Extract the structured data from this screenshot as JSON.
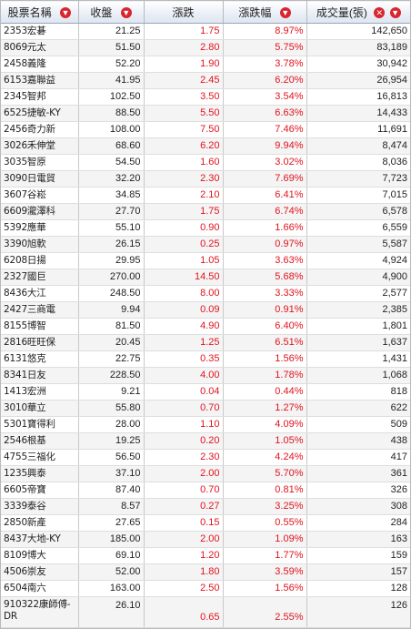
{
  "headers": {
    "name": "股票名稱",
    "price": "收盤",
    "change": "漲跌",
    "change_pct": "漲跌幅",
    "volume": "成交量(張)"
  },
  "icons": {
    "sort": "sort-down-icon",
    "close": "close-icon"
  },
  "colors": {
    "up": "#e0141e",
    "icon": "#d8262f",
    "header_bg": "#e9eef6"
  },
  "rows": [
    {
      "name": "2353宏碁",
      "price": "21.25",
      "change": "1.75",
      "pct": "8.97%",
      "vol": "142,650"
    },
    {
      "name": "8069元太",
      "price": "51.50",
      "change": "2.80",
      "pct": "5.75%",
      "vol": "83,189"
    },
    {
      "name": "2458義隆",
      "price": "52.20",
      "change": "1.90",
      "pct": "3.78%",
      "vol": "30,942"
    },
    {
      "name": "6153嘉聯益",
      "price": "41.95",
      "change": "2.45",
      "pct": "6.20%",
      "vol": "26,954"
    },
    {
      "name": "2345智邦",
      "price": "102.50",
      "change": "3.50",
      "pct": "3.54%",
      "vol": "16,813"
    },
    {
      "name": "6525捷敏-KY",
      "price": "88.50",
      "change": "5.50",
      "pct": "6.63%",
      "vol": "14,433"
    },
    {
      "name": "2456奇力新",
      "price": "108.00",
      "change": "7.50",
      "pct": "7.46%",
      "vol": "11,691"
    },
    {
      "name": "3026禾伸堂",
      "price": "68.60",
      "change": "6.20",
      "pct": "9.94%",
      "vol": "8,474"
    },
    {
      "name": "3035智原",
      "price": "54.50",
      "change": "1.60",
      "pct": "3.02%",
      "vol": "8,036"
    },
    {
      "name": "3090日電貿",
      "price": "32.20",
      "change": "2.30",
      "pct": "7.69%",
      "vol": "7,723"
    },
    {
      "name": "3607谷崧",
      "price": "34.85",
      "change": "2.10",
      "pct": "6.41%",
      "vol": "7,015"
    },
    {
      "name": "6609瀧澤科",
      "price": "27.70",
      "change": "1.75",
      "pct": "6.74%",
      "vol": "6,578"
    },
    {
      "name": "5392應華",
      "price": "55.10",
      "change": "0.90",
      "pct": "1.66%",
      "vol": "6,559"
    },
    {
      "name": "3390旭軟",
      "price": "26.15",
      "change": "0.25",
      "poct": "",
      "pct": "0.97%",
      "vol": "5,587"
    },
    {
      "name": "6208日揚",
      "price": "29.95",
      "change": "1.05",
      "pct": "3.63%",
      "vol": "4,924"
    },
    {
      "name": "2327國巨",
      "price": "270.00",
      "change": "14.50",
      "pct": "5.68%",
      "vol": "4,900"
    },
    {
      "name": "8436大江",
      "price": "248.50",
      "change": "8.00",
      "pct": "3.33%",
      "vol": "2,577"
    },
    {
      "name": "2427三商電",
      "price": "9.94",
      "change": "0.09",
      "pct": "0.91%",
      "vol": "2,385"
    },
    {
      "name": "8155博智",
      "price": "81.50",
      "change": "4.90",
      "pct": "6.40%",
      "vol": "1,801"
    },
    {
      "name": "2816旺旺保",
      "price": "20.45",
      "change": "1.25",
      "pct": "6.51%",
      "vol": "1,637"
    },
    {
      "name": "6131悠克",
      "price": "22.75",
      "change": "0.35",
      "pct": "1.56%",
      "vol": "1,431"
    },
    {
      "name": "8341日友",
      "price": "228.50",
      "change": "4.00",
      "pct": "1.78%",
      "vol": "1,068"
    },
    {
      "name": "1413宏洲",
      "price": "9.21",
      "change": "0.04",
      "pct": "0.44%",
      "vol": "818"
    },
    {
      "name": "3010華立",
      "price": "55.80",
      "change": "0.70",
      "pct": "1.27%",
      "vol": "622"
    },
    {
      "name": "5301寶得利",
      "price": "28.00",
      "change": "1.10",
      "pct": "4.09%",
      "vol": "509"
    },
    {
      "name": "2546根基",
      "price": "19.25",
      "change": "0.20",
      "pct": "1.05%",
      "vol": "438"
    },
    {
      "name": "4755三福化",
      "price": "56.50",
      "change": "2.30",
      "pct": "4.24%",
      "vol": "417"
    },
    {
      "name": "1235興泰",
      "price": "37.10",
      "change": "2.00",
      "pct": "5.70%",
      "vol": "361"
    },
    {
      "name": "6605帝寶",
      "price": "87.40",
      "change": "0.70",
      "pct": "0.81%",
      "vol": "326"
    },
    {
      "name": "3339泰谷",
      "price": "8.57",
      "change": "0.27",
      "pct": "3.25%",
      "vol": "308"
    },
    {
      "name": "2850新產",
      "price": "27.65",
      "change": "0.15",
      "pct": "0.55%",
      "vol": "284"
    },
    {
      "name": "8437大地-KY",
      "price": "185.00",
      "change": "2.00",
      "pct": "1.09%",
      "vol": "163"
    },
    {
      "name": "8109博大",
      "price": "69.10",
      "change": "1.20",
      "pct": "1.77%",
      "vol": "159"
    },
    {
      "name": "4506崇友",
      "price": "52.00",
      "change": "1.80",
      "pct": "3.59%",
      "vol": "157"
    },
    {
      "name": "6504南六",
      "price": "163.00",
      "change": "2.50",
      "pct": "1.56%",
      "vol": "128"
    },
    {
      "name": "910322康師傅-DR",
      "price": "26.10",
      "change": "0.65",
      "pct": "2.55%",
      "vol": "126"
    }
  ]
}
